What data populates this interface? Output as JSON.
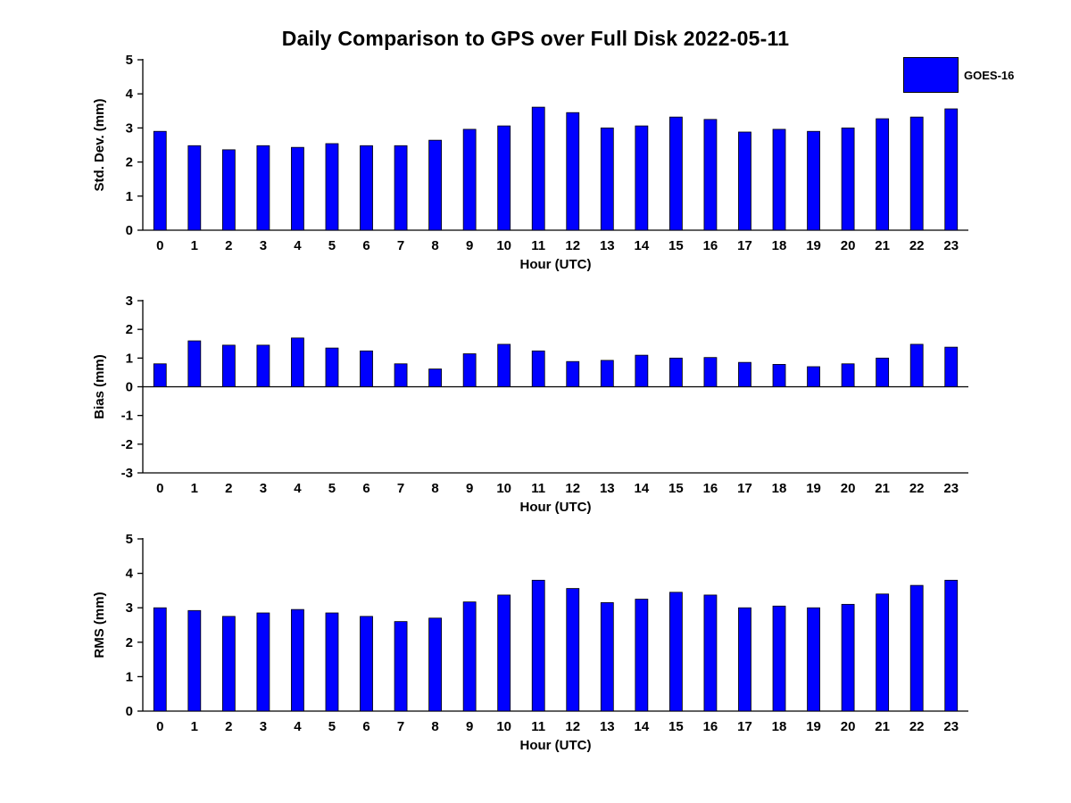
{
  "title": "Daily Comparison to GPS over Full Disk 2022-05-11",
  "legend": {
    "label": "GOES-16",
    "color": "#0000FF"
  },
  "colors": {
    "bar": "#0000FF",
    "bar_edge": "#000000",
    "axis": "#000000"
  },
  "chart_data": [
    {
      "type": "bar",
      "name": "std-dev",
      "ylabel": "Std. Dev. (mm)",
      "xlabel": "Hour (UTC)",
      "ylim": [
        0,
        5
      ],
      "yticks": [
        0,
        1,
        2,
        3,
        4,
        5
      ],
      "categories": [
        "0",
        "1",
        "2",
        "3",
        "4",
        "5",
        "6",
        "7",
        "8",
        "9",
        "10",
        "11",
        "12",
        "13",
        "14",
        "15",
        "16",
        "17",
        "18",
        "19",
        "20",
        "21",
        "22",
        "23"
      ],
      "values": [
        2.9,
        2.48,
        2.36,
        2.48,
        2.43,
        2.54,
        2.48,
        2.48,
        2.64,
        2.96,
        3.06,
        3.61,
        3.45,
        3.0,
        3.06,
        3.32,
        3.25,
        2.88,
        2.96,
        2.9,
        3.0,
        3.27,
        3.32,
        3.56
      ],
      "legend": "GOES-16",
      "grid": false
    },
    {
      "type": "bar",
      "name": "bias",
      "ylabel": "Bias (mm)",
      "xlabel": "Hour (UTC)",
      "ylim": [
        -3,
        3
      ],
      "yticks": [
        -3,
        -2,
        -1,
        0,
        1,
        2,
        3
      ],
      "categories": [
        "0",
        "1",
        "2",
        "3",
        "4",
        "5",
        "6",
        "7",
        "8",
        "9",
        "10",
        "11",
        "12",
        "13",
        "14",
        "15",
        "16",
        "17",
        "18",
        "19",
        "20",
        "21",
        "22",
        "23"
      ],
      "values": [
        0.8,
        1.6,
        1.45,
        1.45,
        1.7,
        1.35,
        1.25,
        0.8,
        0.62,
        1.15,
        1.48,
        1.25,
        0.88,
        0.92,
        1.1,
        1.0,
        1.02,
        0.85,
        0.78,
        0.7,
        0.8,
        1.0,
        1.48,
        1.38
      ],
      "legend": "GOES-16",
      "grid": false
    },
    {
      "type": "bar",
      "name": "rms",
      "ylabel": "RMS (mm)",
      "xlabel": "Hour (UTC)",
      "ylim": [
        0,
        5
      ],
      "yticks": [
        0,
        1,
        2,
        3,
        4,
        5
      ],
      "categories": [
        "0",
        "1",
        "2",
        "3",
        "4",
        "5",
        "6",
        "7",
        "8",
        "9",
        "10",
        "11",
        "12",
        "13",
        "14",
        "15",
        "16",
        "17",
        "18",
        "19",
        "20",
        "21",
        "22",
        "23"
      ],
      "values": [
        3.0,
        2.92,
        2.75,
        2.85,
        2.95,
        2.85,
        2.75,
        2.6,
        2.7,
        3.17,
        3.37,
        3.8,
        3.56,
        3.15,
        3.25,
        3.45,
        3.37,
        3.0,
        3.05,
        3.0,
        3.1,
        3.4,
        3.65,
        3.8
      ]
    }
  ]
}
